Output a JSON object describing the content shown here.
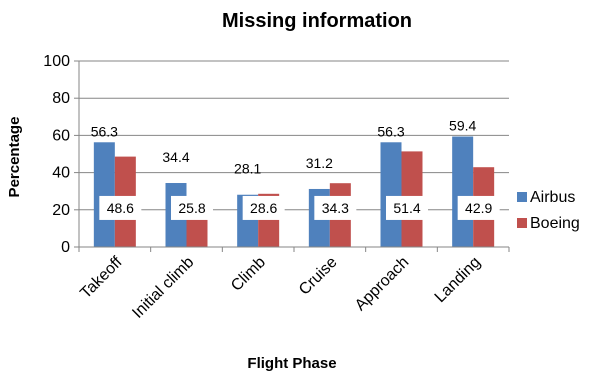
{
  "chart_data": {
    "type": "bar",
    "title": "Missing information",
    "xlabel": "Flight Phase",
    "ylabel": "Percentage",
    "categories": [
      "Takeoff",
      "Initial climb",
      "Climb",
      "Cruise",
      "Approach",
      "Landing"
    ],
    "series": [
      {
        "name": "Airbus",
        "values": [
          56.3,
          34.4,
          28.1,
          31.2,
          56.3,
          59.4
        ],
        "color": "#4F81BD"
      },
      {
        "name": "Boeing",
        "values": [
          48.6,
          25.8,
          28.6,
          34.3,
          51.4,
          42.9
        ],
        "color": "#C0504D"
      }
    ],
    "ylim": [
      0,
      100
    ],
    "yticks": [
      0,
      20,
      40,
      60,
      80,
      100
    ],
    "grid": true,
    "legend_position": "right"
  }
}
